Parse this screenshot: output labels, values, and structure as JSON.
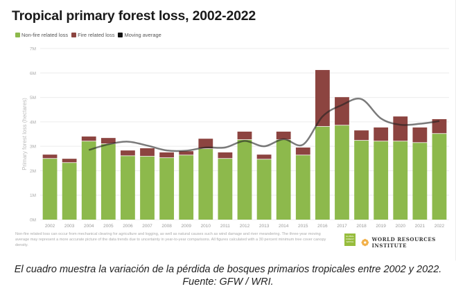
{
  "chart_data": {
    "type": "bar",
    "stacked": true,
    "title": "Tropical primary forest loss, 2002-2022",
    "ylabel": "Primary forest loss (hectares)",
    "xlabel": "",
    "ylim": [
      0,
      7000000
    ],
    "yticks": [
      "0M",
      "1M",
      "2M",
      "3M",
      "4M",
      "5M",
      "6M",
      "7M"
    ],
    "grid": true,
    "legend_placement": "top-left",
    "categories": [
      "2002",
      "2003",
      "2004",
      "2005",
      "2006",
      "2007",
      "2008",
      "2009",
      "2010",
      "2011",
      "2012",
      "2013",
      "2014",
      "2015",
      "2016",
      "2017",
      "2018",
      "2019",
      "2020",
      "2021",
      "2022"
    ],
    "series": [
      {
        "name": "Non-fire related loss",
        "color": "#8db94c",
        "values": [
          2.49,
          2.32,
          3.2,
          3.09,
          2.6,
          2.58,
          2.52,
          2.63,
          2.89,
          2.49,
          3.26,
          2.46,
          3.26,
          2.63,
          3.8,
          3.85,
          3.23,
          3.2,
          3.2,
          3.14,
          3.51
        ]
      },
      {
        "name": "Fire related loss",
        "color": "#8c4440",
        "values": [
          0.17,
          0.17,
          0.2,
          0.25,
          0.23,
          0.34,
          0.23,
          0.17,
          0.42,
          0.26,
          0.34,
          0.2,
          0.34,
          0.32,
          2.32,
          1.16,
          0.42,
          0.57,
          1.02,
          0.63,
          0.6
        ]
      },
      {
        "name": "Moving average",
        "type": "line",
        "color": "#111111",
        "values": [
          null,
          null,
          2.85,
          3.08,
          3.19,
          3.03,
          2.83,
          2.82,
          2.95,
          2.95,
          3.22,
          3.0,
          3.29,
          3.07,
          4.22,
          4.69,
          4.93,
          4.14,
          3.88,
          3.92,
          4.03
        ]
      }
    ],
    "value_unit": "million hectares"
  },
  "footnote": "Non-fire related loss can occur from mechanical clearing for agriculture and logging, as well as natural causes such as wind damage and river meandering. The three-year moving average may represent a more accurate picture of the data trends due to uncertainty in year-to-year comparisons. All figures calculated with a 30 percent minimum tree cover canopy density.",
  "logos": {
    "gfw": "GLOBAL FOREST WATCH",
    "wri": "WORLD RESOURCES INSTITUTE"
  },
  "caption": {
    "line1": "El cuadro muestra la variación de la pérdida de bosques primarios tropicales entre 2002 y 2022.",
    "line2": "Fuente: GFW / WRI."
  }
}
